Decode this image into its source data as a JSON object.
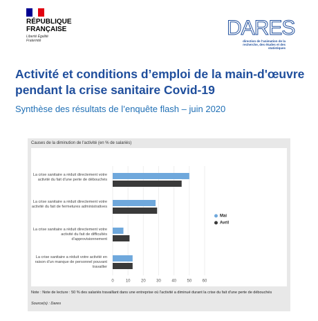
{
  "header": {
    "republique": "RÉPUBLIQUE FRANÇAISE",
    "devise": "Liberté Égalité Fraternité",
    "logo": "DARES",
    "logo_subtitle": "direction de l'animation de la recherche, des études et des statistiques"
  },
  "title": "Activité et conditions d’emploi de la main-d'œuvre pendant la crise sanitaire Covid-19",
  "subtitle": "Synthèse des résultats de l’enquête flash – juin 2020",
  "chart_data": {
    "type": "barh",
    "title": "Causes de la diminution de l'activité (en % de salariés)",
    "categories": [
      "La crise sanitaire a réduit directement votre activité du fait d'une perte de débouchés",
      "La crise sanitaire a réduit directement votre activité du fait de fermetures administratives",
      "La crise sanitaire a réduit directement votre activité du fait de difficultés d'approvisionnement",
      "La crise sanitaire a réduit votre activité en raison d'un manque de personnel pouvant travailler"
    ],
    "series": [
      {
        "name": "Mai",
        "color": "#6fa8dc",
        "values": [
          50,
          28,
          7,
          13
        ]
      },
      {
        "name": "Avril",
        "color": "#3a3a3a",
        "values": [
          45,
          29,
          11,
          13
        ]
      }
    ],
    "xlim": [
      0,
      60
    ],
    "xticks": [
      0,
      10,
      20,
      30,
      40,
      50,
      60
    ],
    "note": "Note : Note de lecture : 50 % des salariés travaillant dans une entreprise où l'activité a diminué durant la crise du fait d'une perte de débouchés",
    "source": "Source(s) : Dares"
  }
}
